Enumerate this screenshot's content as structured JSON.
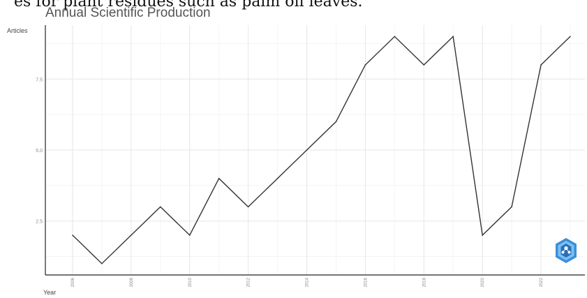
{
  "header": {
    "top_text": "es for plant residues such as palm oil leaves."
  },
  "chart_data": {
    "type": "line",
    "title": "Annual Scientific Production",
    "xlabel": "Year",
    "ylabel": "Articles",
    "x": [
      2006,
      2007,
      2008,
      2009,
      2010,
      2011,
      2012,
      2013,
      2014,
      2015,
      2016,
      2017,
      2018,
      2019,
      2020,
      2021,
      2022,
      2023
    ],
    "values": [
      2,
      1,
      2,
      3,
      2,
      4,
      3,
      4,
      5,
      6,
      8,
      9,
      8,
      9,
      2,
      3,
      8,
      9
    ],
    "xticks": [
      "2006",
      "2008",
      "2010",
      "2012",
      "2014",
      "2016",
      "2018",
      "2020",
      "2022"
    ],
    "yticks": [
      "2.5",
      "5.0",
      "7.5"
    ],
    "ytick_values": [
      2.5,
      5.0,
      7.5
    ],
    "ylim": [
      0.6,
      9.4
    ],
    "grid": true,
    "line_color": "#333333"
  },
  "logo": {
    "icon": "bibliometrix-logo-icon",
    "color": "#3a8fd8"
  }
}
